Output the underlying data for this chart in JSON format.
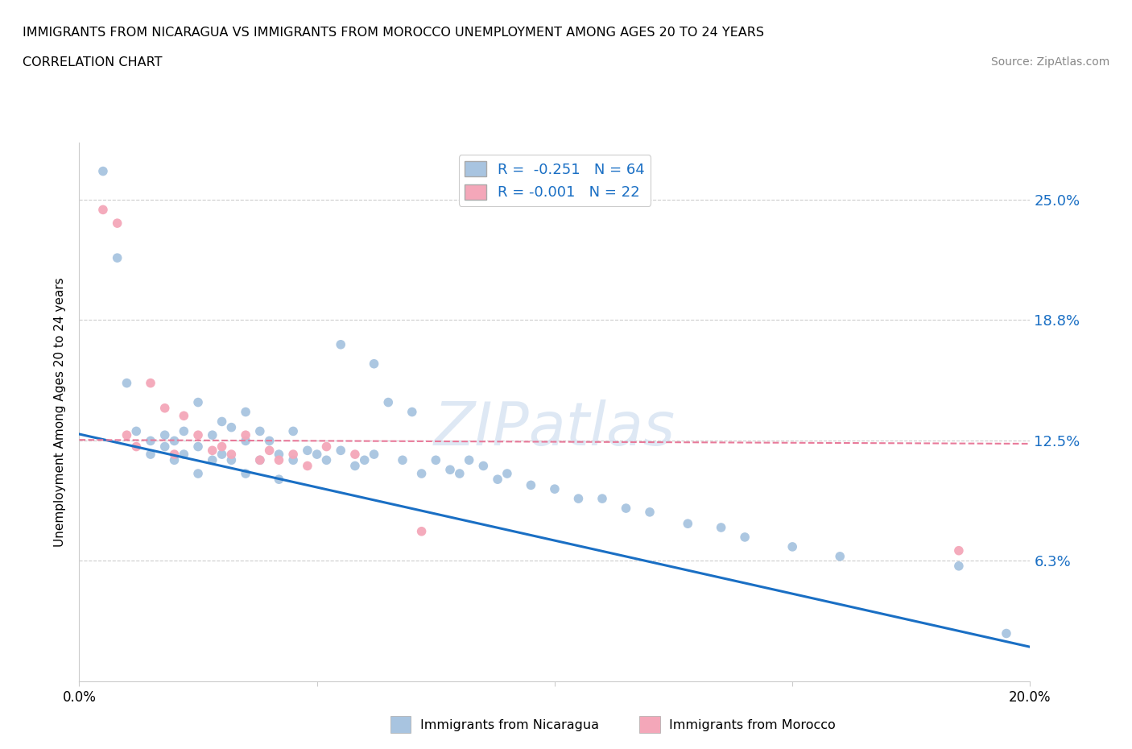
{
  "title_line1": "IMMIGRANTS FROM NICARAGUA VS IMMIGRANTS FROM MOROCCO UNEMPLOYMENT AMONG AGES 20 TO 24 YEARS",
  "title_line2": "CORRELATION CHART",
  "source": "Source: ZipAtlas.com",
  "ylabel": "Unemployment Among Ages 20 to 24 years",
  "xlim": [
    0.0,
    0.2
  ],
  "ylim": [
    0.0,
    0.28
  ],
  "yticks": [
    0.0,
    0.063,
    0.125,
    0.188,
    0.25
  ],
  "ytick_labels": [
    "",
    "6.3%",
    "12.5%",
    "18.8%",
    "25.0%"
  ],
  "xticks": [
    0.0,
    0.05,
    0.1,
    0.15,
    0.2
  ],
  "xtick_labels": [
    "0.0%",
    "",
    "",
    "",
    "20.0%"
  ],
  "nicaragua_color": "#a8c4e0",
  "morocco_color": "#f4a7b9",
  "line_nicaragua_color": "#1a6fc4",
  "line_morocco_color": "#e87a9a",
  "nicaragua_R": -0.251,
  "nicaragua_N": 64,
  "morocco_R": -0.001,
  "morocco_N": 22,
  "legend_label_nicaragua": "Immigrants from Nicaragua",
  "legend_label_morocco": "Immigrants from Morocco",
  "watermark": "ZIPatlas",
  "nicaragua_x": [
    0.005,
    0.008,
    0.01,
    0.012,
    0.015,
    0.015,
    0.018,
    0.018,
    0.02,
    0.02,
    0.022,
    0.022,
    0.025,
    0.025,
    0.025,
    0.028,
    0.028,
    0.03,
    0.03,
    0.032,
    0.032,
    0.035,
    0.035,
    0.035,
    0.038,
    0.038,
    0.04,
    0.042,
    0.042,
    0.045,
    0.045,
    0.048,
    0.05,
    0.052,
    0.055,
    0.055,
    0.058,
    0.06,
    0.062,
    0.062,
    0.065,
    0.068,
    0.07,
    0.072,
    0.075,
    0.078,
    0.08,
    0.082,
    0.085,
    0.088,
    0.09,
    0.095,
    0.1,
    0.105,
    0.11,
    0.115,
    0.12,
    0.128,
    0.135,
    0.14,
    0.15,
    0.16,
    0.185,
    0.195
  ],
  "nicaragua_y": [
    0.265,
    0.22,
    0.155,
    0.13,
    0.125,
    0.118,
    0.128,
    0.122,
    0.125,
    0.115,
    0.13,
    0.118,
    0.145,
    0.122,
    0.108,
    0.128,
    0.115,
    0.135,
    0.118,
    0.132,
    0.115,
    0.14,
    0.125,
    0.108,
    0.13,
    0.115,
    0.125,
    0.118,
    0.105,
    0.13,
    0.115,
    0.12,
    0.118,
    0.115,
    0.175,
    0.12,
    0.112,
    0.115,
    0.165,
    0.118,
    0.145,
    0.115,
    0.14,
    0.108,
    0.115,
    0.11,
    0.108,
    0.115,
    0.112,
    0.105,
    0.108,
    0.102,
    0.1,
    0.095,
    0.095,
    0.09,
    0.088,
    0.082,
    0.08,
    0.075,
    0.07,
    0.065,
    0.06,
    0.025
  ],
  "morocco_x": [
    0.005,
    0.008,
    0.01,
    0.012,
    0.015,
    0.018,
    0.02,
    0.022,
    0.025,
    0.028,
    0.03,
    0.032,
    0.035,
    0.038,
    0.04,
    0.042,
    0.045,
    0.048,
    0.052,
    0.058,
    0.072,
    0.185
  ],
  "morocco_y": [
    0.245,
    0.238,
    0.128,
    0.122,
    0.155,
    0.142,
    0.118,
    0.138,
    0.128,
    0.12,
    0.122,
    0.118,
    0.128,
    0.115,
    0.12,
    0.115,
    0.118,
    0.112,
    0.122,
    0.118,
    0.078,
    0.068
  ],
  "nic_line_x0": 0.0,
  "nic_line_x1": 0.2,
  "nic_line_y0": 0.1285,
  "nic_line_y1": 0.018,
  "mor_line_x0": 0.0,
  "mor_line_x1": 0.2,
  "mor_line_y0": 0.1255,
  "mor_line_y1": 0.1235
}
